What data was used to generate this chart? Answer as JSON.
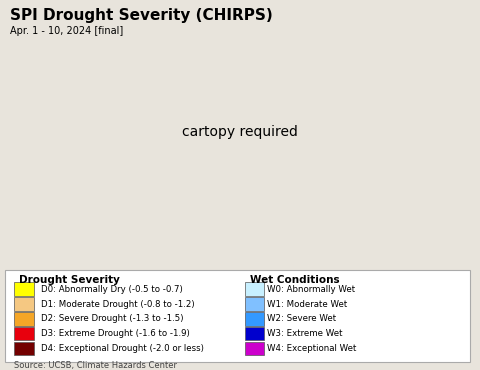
{
  "title": "SPI Drought Severity (CHIRPS)",
  "subtitle": "Apr. 1 - 10, 2024 [final]",
  "source": "Source: UCSB, Climate Hazards Center",
  "ocean_color": "#b8e8f8",
  "land_bg_color": "#e8e4dc",
  "fig_bg_color": "#e8e4dc",
  "border_color": "#444444",
  "state_border_color": "#999966",
  "legend_title_drought": "Drought Severity",
  "legend_title_wet": "Wet Conditions",
  "drought_categories": [
    {
      "label": "D0: Abnormally Dry (-0.5 to -0.7)",
      "color": "#ffff00"
    },
    {
      "label": "D1: Moderate Drought (-0.8 to -1.2)",
      "color": "#f5c882"
    },
    {
      "label": "D2: Severe Drought (-1.3 to -1.5)",
      "color": "#f5a627"
    },
    {
      "label": "D3: Extreme Drought (-1.6 to -1.9)",
      "color": "#e8000d"
    },
    {
      "label": "D4: Exceptional Drought (-2.0 or less)",
      "color": "#730000"
    }
  ],
  "wet_categories": [
    {
      "label": "W0: Abnormally Wet",
      "color": "#c8f0ff"
    },
    {
      "label": "W1: Moderate Wet",
      "color": "#80c0ff"
    },
    {
      "label": "W2: Severe Wet",
      "color": "#3399ff"
    },
    {
      "label": "W3: Extreme Wet",
      "color": "#0000cd"
    },
    {
      "label": "W4: Exceptional Wet",
      "color": "#cc00cc"
    }
  ],
  "map_extent": [
    -125,
    -65,
    24,
    50
  ],
  "figsize": [
    4.8,
    3.7
  ],
  "dpi": 100
}
